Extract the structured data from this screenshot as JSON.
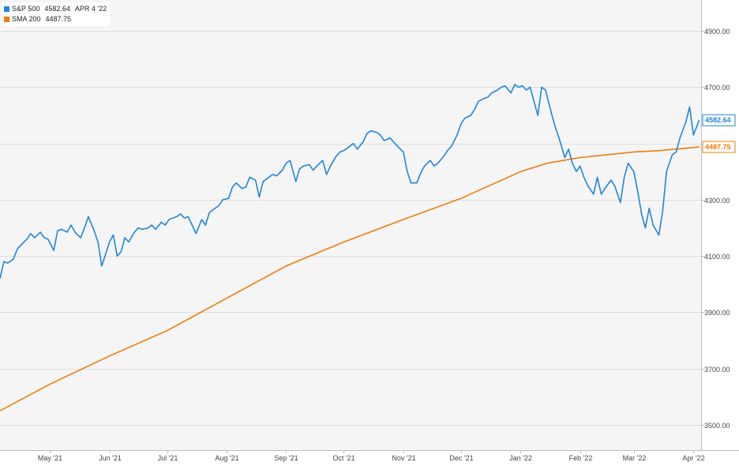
{
  "chart_data": {
    "type": "line",
    "legend": [
      {
        "name": "S&P 500",
        "value": "4582.64",
        "date": "APR 4 '22",
        "color": "#1f86dd"
      },
      {
        "name": "SMA 200",
        "value": "4487.75",
        "date": "",
        "color": "#f07c0a"
      }
    ],
    "legend_position": "top-left",
    "y_ticks": [
      "3500.00",
      "3700.00",
      "3900.00",
      "4100.00",
      "4300.00",
      "4500.00",
      "4700.00",
      "4900.00"
    ],
    "y_tick_values": [
      3500,
      3700,
      3900,
      4100,
      4300,
      4500,
      4700,
      4900
    ],
    "ylim": [
      3410,
      5010
    ],
    "x_range": [
      "2021-04-05",
      "2022-04-05"
    ],
    "x_ticks": [
      {
        "label": "May '21",
        "date": "2021-05-01"
      },
      {
        "label": "Jun '21",
        "date": "2021-06-01"
      },
      {
        "label": "Jul '21",
        "date": "2021-07-01"
      },
      {
        "label": "Aug '21",
        "date": "2021-08-01"
      },
      {
        "label": "Sep '21",
        "date": "2021-09-01"
      },
      {
        "label": "Oct '21",
        "date": "2021-10-01"
      },
      {
        "label": "Nov '21",
        "date": "2021-11-01"
      },
      {
        "label": "Dec '21",
        "date": "2021-12-01"
      },
      {
        "label": "Jan '22",
        "date": "2022-01-01"
      },
      {
        "label": "Feb '22",
        "date": "2022-02-01"
      },
      {
        "label": "Mar '22",
        "date": "2022-03-01"
      },
      {
        "label": "Apr '22",
        "date": "2022-04-01"
      }
    ],
    "grid": "horizontal",
    "series": [
      {
        "name": "S&P 500",
        "color": "#1f86dd",
        "last_label": "4582.64",
        "points": [
          [
            "2021-04-05",
            4020
          ],
          [
            "2021-04-07",
            4080
          ],
          [
            "2021-04-09",
            4075
          ],
          [
            "2021-04-12",
            4090
          ],
          [
            "2021-04-14",
            4125
          ],
          [
            "2021-04-16",
            4140
          ],
          [
            "2021-04-19",
            4160
          ],
          [
            "2021-04-21",
            4180
          ],
          [
            "2021-04-23",
            4165
          ],
          [
            "2021-04-26",
            4185
          ],
          [
            "2021-04-28",
            4165
          ],
          [
            "2021-04-30",
            4160
          ],
          [
            "2021-05-03",
            4120
          ],
          [
            "2021-05-05",
            4190
          ],
          [
            "2021-05-07",
            4195
          ],
          [
            "2021-05-10",
            4185
          ],
          [
            "2021-05-12",
            4210
          ],
          [
            "2021-05-14",
            4185
          ],
          [
            "2021-05-17",
            4165
          ],
          [
            "2021-05-19",
            4200
          ],
          [
            "2021-05-21",
            4240
          ],
          [
            "2021-05-24",
            4190
          ],
          [
            "2021-05-26",
            4150
          ],
          [
            "2021-05-28",
            4065
          ],
          [
            "2021-06-01",
            4150
          ],
          [
            "2021-06-03",
            4175
          ],
          [
            "2021-06-05",
            4100
          ],
          [
            "2021-06-07",
            4115
          ],
          [
            "2021-06-09",
            4165
          ],
          [
            "2021-06-11",
            4150
          ],
          [
            "2021-06-14",
            4185
          ],
          [
            "2021-06-16",
            4200
          ],
          [
            "2021-06-18",
            4195
          ],
          [
            "2021-06-21",
            4200
          ],
          [
            "2021-06-23",
            4210
          ],
          [
            "2021-06-25",
            4195
          ],
          [
            "2021-06-28",
            4220
          ],
          [
            "2021-06-30",
            4210
          ],
          [
            "2021-07-02",
            4230
          ],
          [
            "2021-07-06",
            4240
          ],
          [
            "2021-07-08",
            4250
          ],
          [
            "2021-07-10",
            4235
          ],
          [
            "2021-07-12",
            4240
          ],
          [
            "2021-07-14",
            4210
          ],
          [
            "2021-07-16",
            4180
          ],
          [
            "2021-07-19",
            4230
          ],
          [
            "2021-07-21",
            4210
          ],
          [
            "2021-07-23",
            4255
          ],
          [
            "2021-07-26",
            4270
          ],
          [
            "2021-07-28",
            4280
          ],
          [
            "2021-07-30",
            4300
          ],
          [
            "2021-08-02",
            4305
          ],
          [
            "2021-08-04",
            4345
          ],
          [
            "2021-08-06",
            4360
          ],
          [
            "2021-08-09",
            4340
          ],
          [
            "2021-08-11",
            4345
          ],
          [
            "2021-08-13",
            4380
          ],
          [
            "2021-08-16",
            4370
          ],
          [
            "2021-08-18",
            4310
          ],
          [
            "2021-08-20",
            4365
          ],
          [
            "2021-08-23",
            4380
          ],
          [
            "2021-08-25",
            4390
          ],
          [
            "2021-08-27",
            4385
          ],
          [
            "2021-08-30",
            4405
          ],
          [
            "2021-09-01",
            4430
          ],
          [
            "2021-09-03",
            4440
          ],
          [
            "2021-09-06",
            4365
          ],
          [
            "2021-09-08",
            4410
          ],
          [
            "2021-09-10",
            4420
          ],
          [
            "2021-09-13",
            4425
          ],
          [
            "2021-09-15",
            4405
          ],
          [
            "2021-09-17",
            4420
          ],
          [
            "2021-09-20",
            4440
          ],
          [
            "2021-09-22",
            4390
          ],
          [
            "2021-09-24",
            4420
          ],
          [
            "2021-09-27",
            4455
          ],
          [
            "2021-09-29",
            4470
          ],
          [
            "2021-10-01",
            4475
          ],
          [
            "2021-10-04",
            4490
          ],
          [
            "2021-10-06",
            4500
          ],
          [
            "2021-10-08",
            4480
          ],
          [
            "2021-10-11",
            4505
          ],
          [
            "2021-10-13",
            4535
          ],
          [
            "2021-10-15",
            4545
          ],
          [
            "2021-10-18",
            4540
          ],
          [
            "2021-10-20",
            4530
          ],
          [
            "2021-10-22",
            4510
          ],
          [
            "2021-10-25",
            4520
          ],
          [
            "2021-10-27",
            4505
          ],
          [
            "2021-10-29",
            4490
          ],
          [
            "2021-11-01",
            4470
          ],
          [
            "2021-11-03",
            4400
          ],
          [
            "2021-11-05",
            4360
          ],
          [
            "2021-11-08",
            4360
          ],
          [
            "2021-11-10",
            4395
          ],
          [
            "2021-11-12",
            4420
          ],
          [
            "2021-11-15",
            4440
          ],
          [
            "2021-11-17",
            4420
          ],
          [
            "2021-11-19",
            4430
          ],
          [
            "2021-11-22",
            4455
          ],
          [
            "2021-11-24",
            4475
          ],
          [
            "2021-11-26",
            4490
          ],
          [
            "2021-11-29",
            4530
          ],
          [
            "2021-12-01",
            4570
          ],
          [
            "2021-12-03",
            4590
          ],
          [
            "2021-12-06",
            4600
          ],
          [
            "2021-12-08",
            4620
          ],
          [
            "2021-12-10",
            4650
          ],
          [
            "2021-12-13",
            4660
          ],
          [
            "2021-12-15",
            4665
          ],
          [
            "2021-12-17",
            4680
          ],
          [
            "2021-12-20",
            4690
          ],
          [
            "2021-12-22",
            4700
          ],
          [
            "2021-12-24",
            4705
          ],
          [
            "2021-12-27",
            4680
          ],
          [
            "2021-12-29",
            4710
          ],
          [
            "2021-12-31",
            4700
          ],
          [
            "2022-01-02",
            4705
          ],
          [
            "2022-01-04",
            4690
          ],
          [
            "2022-01-06",
            4700
          ],
          [
            "2022-01-08",
            4650
          ],
          [
            "2022-01-10",
            4600
          ],
          [
            "2022-01-12",
            4700
          ],
          [
            "2022-01-14",
            4690
          ],
          [
            "2022-01-17",
            4610
          ],
          [
            "2022-01-19",
            4560
          ],
          [
            "2022-01-21",
            4520
          ],
          [
            "2022-01-24",
            4450
          ],
          [
            "2022-01-26",
            4480
          ],
          [
            "2022-01-28",
            4430
          ],
          [
            "2022-01-30",
            4400
          ],
          [
            "2022-02-01",
            4420
          ],
          [
            "2022-02-03",
            4380
          ],
          [
            "2022-02-05",
            4350
          ],
          [
            "2022-02-08",
            4320
          ],
          [
            "2022-02-10",
            4380
          ],
          [
            "2022-02-12",
            4320
          ],
          [
            "2022-02-15",
            4350
          ],
          [
            "2022-02-17",
            4370
          ],
          [
            "2022-02-19",
            4350
          ],
          [
            "2022-02-22",
            4290
          ],
          [
            "2022-02-24",
            4380
          ],
          [
            "2022-02-26",
            4430
          ],
          [
            "2022-03-01",
            4400
          ],
          [
            "2022-03-03",
            4330
          ],
          [
            "2022-03-05",
            4250
          ],
          [
            "2022-03-07",
            4200
          ],
          [
            "2022-03-09",
            4270
          ],
          [
            "2022-03-11",
            4210
          ],
          [
            "2022-03-14",
            4175
          ],
          [
            "2022-03-16",
            4260
          ],
          [
            "2022-03-18",
            4400
          ],
          [
            "2022-03-21",
            4460
          ],
          [
            "2022-03-23",
            4470
          ],
          [
            "2022-03-25",
            4520
          ],
          [
            "2022-03-28",
            4575
          ],
          [
            "2022-03-30",
            4630
          ],
          [
            "2022-04-01",
            4530
          ],
          [
            "2022-04-04",
            4582.64
          ]
        ]
      },
      {
        "name": "SMA 200",
        "color": "#f07c0a",
        "last_label": "4487.75",
        "points": [
          [
            "2021-04-05",
            3550
          ],
          [
            "2021-05-01",
            3645
          ],
          [
            "2021-06-01",
            3745
          ],
          [
            "2021-07-01",
            3835
          ],
          [
            "2021-08-01",
            3950
          ],
          [
            "2021-09-01",
            4065
          ],
          [
            "2021-10-01",
            4150
          ],
          [
            "2021-11-01",
            4230
          ],
          [
            "2021-12-01",
            4305
          ],
          [
            "2022-01-01",
            4400
          ],
          [
            "2022-01-15",
            4430
          ],
          [
            "2022-02-01",
            4450
          ],
          [
            "2022-02-15",
            4460
          ],
          [
            "2022-03-01",
            4470
          ],
          [
            "2022-03-15",
            4475
          ],
          [
            "2022-04-04",
            4487.75
          ]
        ]
      }
    ]
  }
}
